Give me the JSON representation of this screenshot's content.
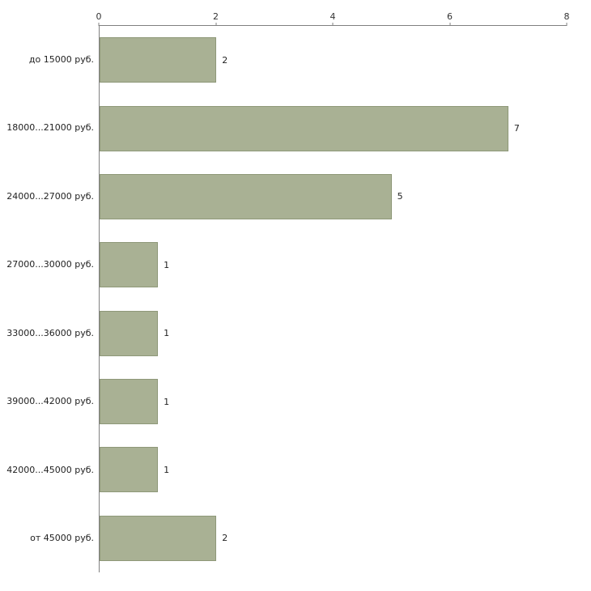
{
  "chart_data": {
    "type": "bar",
    "orientation": "horizontal",
    "title": "",
    "xlabel": "",
    "ylabel": "",
    "categories": [
      "до 15000 руб.",
      "18000...21000 руб.",
      "24000...27000 руб.",
      "27000...30000 руб.",
      "33000...36000 руб.",
      "39000...42000 руб.",
      "42000...45000 руб.",
      "от 45000 руб."
    ],
    "values": [
      2,
      7,
      5,
      1,
      1,
      1,
      1,
      2
    ],
    "x_ticks": [
      0,
      2,
      4,
      6,
      8
    ],
    "xlim": [
      0,
      8
    ],
    "grid": false,
    "legend": false,
    "axis_position": "top-left",
    "colors": {
      "bar_fill": "#a9b194",
      "bar_border": "#8e9878",
      "axis_line": "#808080",
      "text": "#222222",
      "background": "#ffffff"
    }
  }
}
